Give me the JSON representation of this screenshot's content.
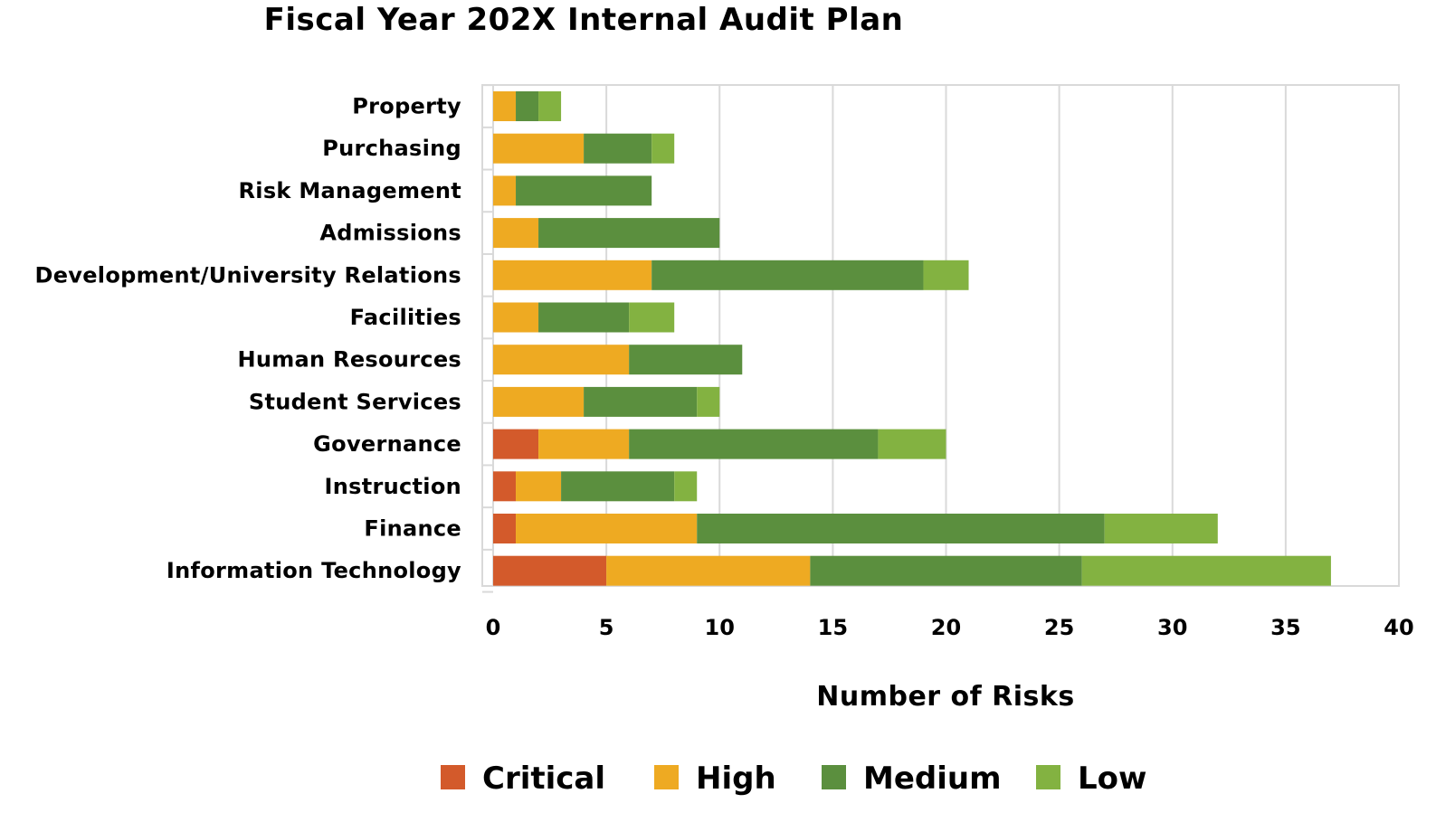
{
  "chart_data": {
    "type": "bar",
    "orientation": "horizontal",
    "stacked": true,
    "title": "Fiscal Year 202X Internal Audit Plan",
    "xlabel": "Number of Risks",
    "ylabel": "",
    "xlim": [
      0,
      40
    ],
    "xticks": [
      "0",
      "5",
      "10",
      "15",
      "20",
      "25",
      "30",
      "35",
      "40"
    ],
    "grid": "vertical",
    "legend_position": "bottom",
    "categories": [
      "Property",
      "Purchasing",
      "Risk Management",
      "Admissions",
      "Development/University Relations",
      "Facilities",
      "Human Resources",
      "Student Services",
      "Governance",
      "Instruction",
      "Finance",
      "Information Technology"
    ],
    "series": [
      {
        "name": "Critical",
        "color": "#d35a2b",
        "values": [
          0,
          0,
          0,
          0,
          0,
          0,
          0,
          0,
          2,
          1,
          1,
          5
        ]
      },
      {
        "name": "High",
        "color": "#eeaa22",
        "values": [
          1,
          4,
          1,
          2,
          7,
          2,
          6,
          4,
          4,
          2,
          8,
          9
        ]
      },
      {
        "name": "Medium",
        "color": "#5b8f3e",
        "values": [
          1,
          3,
          6,
          8,
          12,
          4,
          5,
          5,
          11,
          5,
          18,
          12
        ]
      },
      {
        "name": "Low",
        "color": "#83b241",
        "values": [
          1,
          1,
          0,
          0,
          2,
          2,
          0,
          1,
          3,
          1,
          5,
          11
        ]
      }
    ]
  }
}
